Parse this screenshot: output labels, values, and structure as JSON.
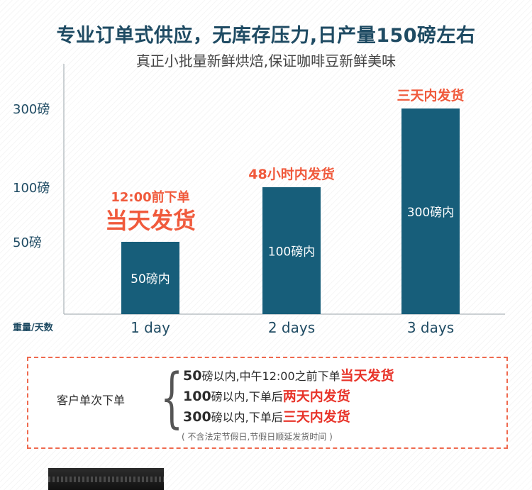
{
  "header": {
    "title": "专业订单式供应，无库存压力,日产量150磅左右",
    "subtitle": "真正小批量新鲜烘焙,保证咖啡豆新鲜美味"
  },
  "chart_data": {
    "type": "bar",
    "categories": [
      "1 day",
      "2 days",
      "3 days"
    ],
    "values": [
      50,
      100,
      300
    ],
    "bar_labels": [
      "50磅内",
      "100磅内",
      "300磅内"
    ],
    "y_ticks": [
      {
        "value": 50,
        "label": "50磅"
      },
      {
        "value": 100,
        "label": "100磅"
      },
      {
        "value": 300,
        "label": "300磅"
      }
    ],
    "ylabel": "重量/天数",
    "annotations": [
      {
        "category": "1 day",
        "lines": [
          "12:00前下单",
          "当天发货"
        ]
      },
      {
        "category": "2 days",
        "lines": [
          "48小时内发货"
        ]
      },
      {
        "category": "3 days",
        "lines": [
          "三天内发货"
        ]
      }
    ],
    "bar_color": "#175e7a",
    "annotation_color": "#f05a3c",
    "grid": false
  },
  "info_box": {
    "label": "客户单次下单",
    "rows": [
      {
        "num": "50",
        "text": "磅以内,中午12:00之前下单",
        "emphasis": "当天发货"
      },
      {
        "num": "100",
        "text": "磅以内,下单后",
        "emphasis": "两天内发货"
      },
      {
        "num": "300",
        "text": "磅以内,下单后",
        "emphasis": "三天内发货"
      }
    ],
    "note": "( 不含法定节假日,节假日顺延发货时间 )"
  },
  "colors": {
    "title": "#1f4b63",
    "accent": "#e8342a",
    "border": "#ef6a4f"
  }
}
